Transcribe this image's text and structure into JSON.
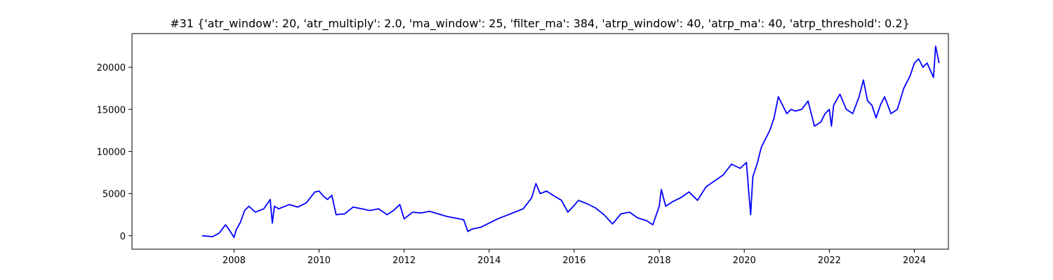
{
  "chart_data": {
    "type": "line",
    "title": "#31 {'atr_window': 20, 'atr_multiply': 2.0, 'ma_window': 25, 'filter_ma': 384, 'atrp_window': 40, 'atrp_ma': 40, 'atrp_threshold': 0.2}",
    "xlabel": "",
    "ylabel": "",
    "x_scale": "date",
    "xlim": [
      2005.6,
      2024.8
    ],
    "ylim": [
      -1600,
      24000
    ],
    "x_ticks": [
      2008,
      2010,
      2012,
      2014,
      2016,
      2018,
      2020,
      2022,
      2024
    ],
    "x_tick_labels": [
      "2008",
      "2010",
      "2012",
      "2014",
      "2016",
      "2018",
      "2020",
      "2022",
      "2024"
    ],
    "y_ticks": [
      0,
      5000,
      10000,
      15000,
      20000
    ],
    "y_tick_labels": [
      "0",
      "5000",
      "10000",
      "15000",
      "20000"
    ],
    "grid": false,
    "legend": "none",
    "line_color": "#0000ff",
    "series": [
      {
        "x": [
          2007.25,
          2007.5,
          2007.65,
          2007.8,
          2007.9,
          2008.0,
          2008.05,
          2008.15,
          2008.25,
          2008.35,
          2008.5,
          2008.7,
          2008.85,
          2008.9,
          2008.95,
          2009.05,
          2009.3,
          2009.5,
          2009.7,
          2009.9,
          2010.0,
          2010.1,
          2010.2,
          2010.3,
          2010.4,
          2010.6,
          2010.8,
          2011.0,
          2011.2,
          2011.4,
          2011.6,
          2011.75,
          2011.9,
          2012.0,
          2012.2,
          2012.4,
          2012.6,
          2012.8,
          2013.0,
          2013.2,
          2013.4,
          2013.5,
          2013.6,
          2013.8,
          2014.0,
          2014.2,
          2014.4,
          2014.6,
          2014.8,
          2015.0,
          2015.1,
          2015.2,
          2015.35,
          2015.5,
          2015.7,
          2015.85,
          2016.0,
          2016.1,
          2016.3,
          2016.5,
          2016.7,
          2016.9,
          2017.1,
          2017.3,
          2017.5,
          2017.7,
          2017.85,
          2018.0,
          2018.05,
          2018.15,
          2018.3,
          2018.5,
          2018.7,
          2018.9,
          2019.1,
          2019.3,
          2019.5,
          2019.7,
          2019.9,
          2020.05,
          2020.1,
          2020.15,
          2020.2,
          2020.3,
          2020.4,
          2020.5,
          2020.6,
          2020.7,
          2020.8,
          2020.9,
          2021.0,
          2021.1,
          2021.2,
          2021.35,
          2021.5,
          2021.65,
          2021.8,
          2021.9,
          2022.0,
          2022.05,
          2022.1,
          2022.25,
          2022.4,
          2022.55,
          2022.7,
          2022.8,
          2022.9,
          2023.0,
          2023.1,
          2023.2,
          2023.3,
          2023.45,
          2023.6,
          2023.75,
          2023.9,
          2024.0,
          2024.1,
          2024.2,
          2024.3,
          2024.45,
          2024.5,
          2024.58
        ],
        "y": [
          0,
          -100,
          300,
          1300,
          600,
          -200,
          700,
          1600,
          3000,
          3500,
          2800,
          3200,
          4300,
          1500,
          3500,
          3200,
          3700,
          3400,
          3900,
          5200,
          5300,
          4700,
          4300,
          4800,
          2500,
          2600,
          3400,
          3200,
          3000,
          3200,
          2500,
          3000,
          3700,
          2000,
          2800,
          2700,
          2900,
          2600,
          2300,
          2100,
          1900,
          500,
          800,
          1000,
          1500,
          2000,
          2400,
          2800,
          3200,
          4500,
          6200,
          5000,
          5300,
          4800,
          4200,
          2800,
          3600,
          4200,
          3800,
          3300,
          2500,
          1400,
          2600,
          2800,
          2100,
          1800,
          1300,
          3500,
          5500,
          3500,
          4000,
          4500,
          5200,
          4200,
          5800,
          6500,
          7200,
          8500,
          8000,
          8700,
          5500,
          2500,
          7000,
          8500,
          10500,
          11500,
          12500,
          14000,
          16500,
          15500,
          14500,
          15000,
          14800,
          15000,
          16000,
          13000,
          13500,
          14500,
          15000,
          13000,
          15500,
          16800,
          15000,
          14500,
          16500,
          18500,
          16000,
          15500,
          14000,
          15500,
          16500,
          14500,
          15000,
          17500,
          19000,
          20500,
          21000,
          20000,
          20500,
          18800,
          22500,
          20500
        ]
      }
    ]
  }
}
